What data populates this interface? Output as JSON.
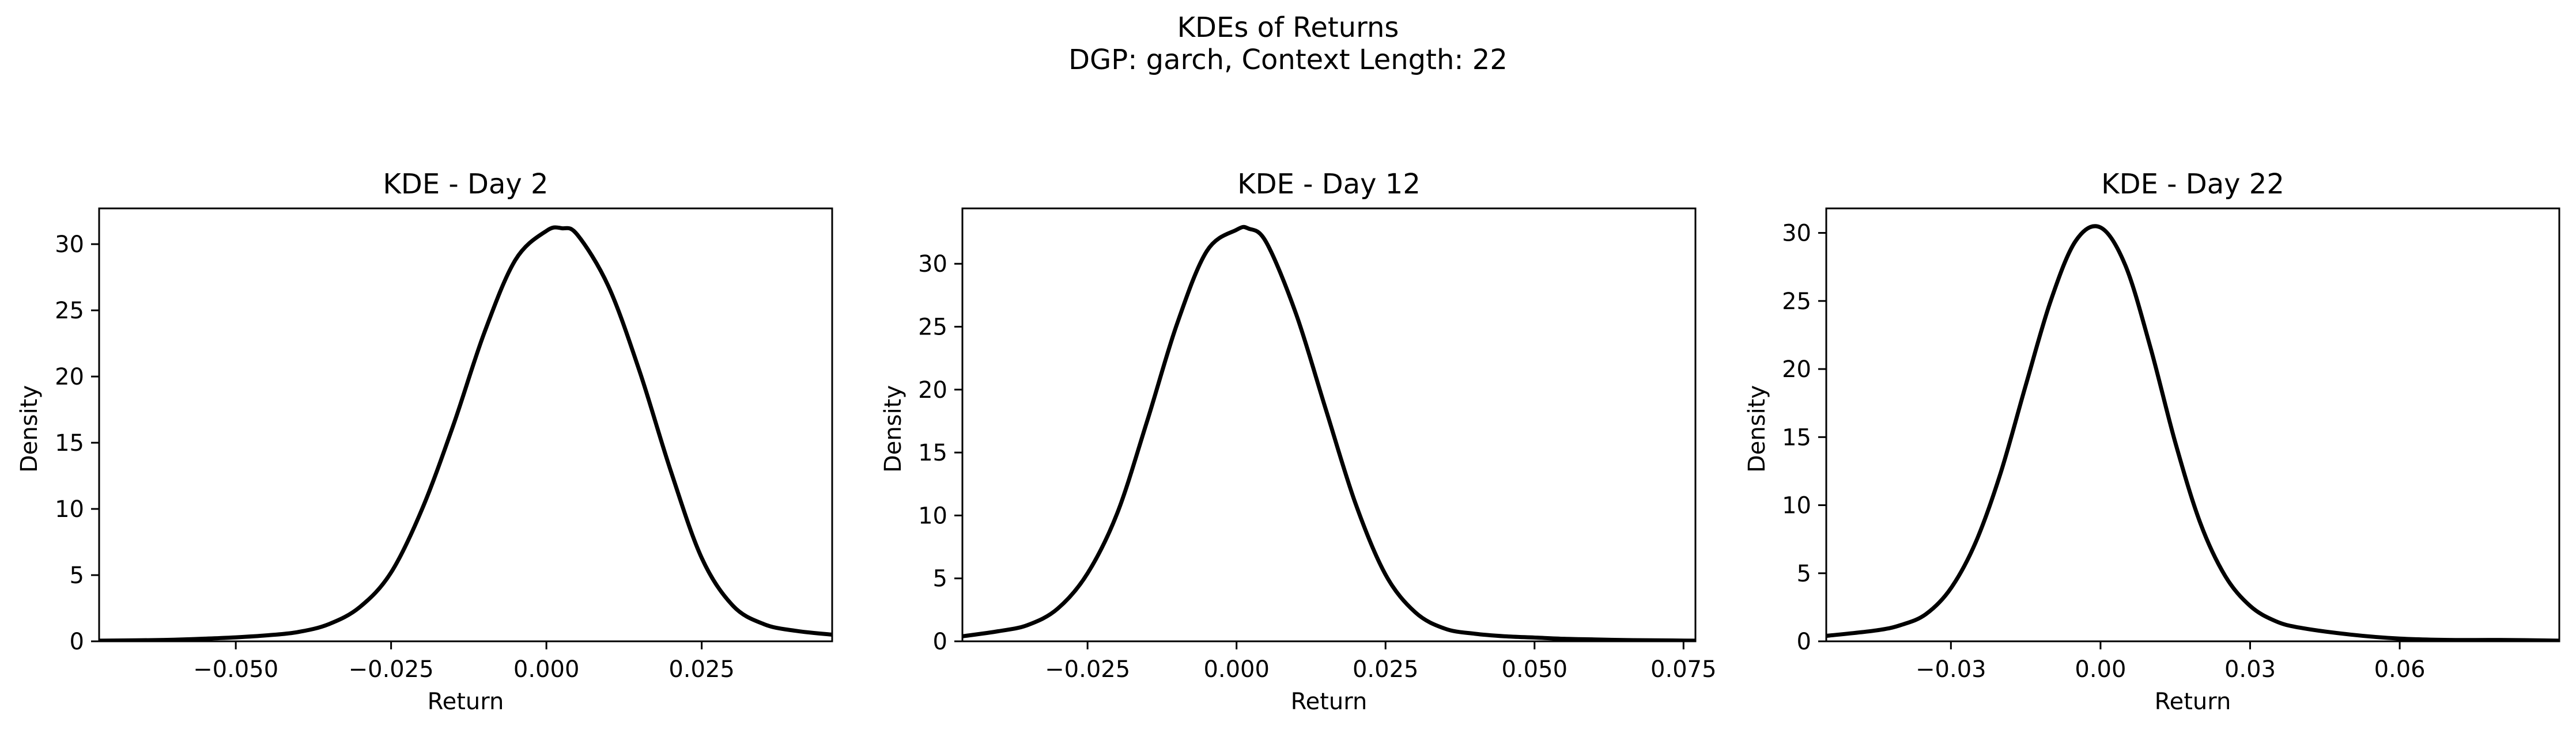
{
  "figure": {
    "title_line1": "KDEs of Returns",
    "title_line2": "DGP: garch, Context Length: 22"
  },
  "chart_data": [
    {
      "type": "line",
      "title": "KDE - Day 2",
      "xlabel": "Return",
      "ylabel": "Density",
      "xlim": [
        -0.072,
        0.046
      ],
      "ylim": [
        0,
        32.7
      ],
      "xticks": [
        -0.05,
        -0.025,
        0.0,
        0.025
      ],
      "xtick_labels": [
        "−0.050",
        "−0.025",
        "0.000",
        "0.025"
      ],
      "yticks": [
        0,
        5,
        10,
        15,
        20,
        25,
        30
      ],
      "ytick_labels": [
        "0",
        "5",
        "10",
        "15",
        "20",
        "25",
        "30"
      ],
      "line_color": "#000000",
      "series": [
        {
          "x": [
            -0.072,
            -0.065,
            -0.06,
            -0.055,
            -0.05,
            -0.045,
            -0.04,
            -0.035,
            -0.03,
            -0.025,
            -0.02,
            -0.015,
            -0.01,
            -0.005,
            0.0,
            0.0025,
            0.005,
            0.01,
            0.015,
            0.02,
            0.025,
            0.03,
            0.035,
            0.04,
            0.046
          ],
          "y": [
            0.05,
            0.08,
            0.12,
            0.2,
            0.3,
            0.45,
            0.7,
            1.3,
            2.6,
            5.2,
            10.0,
            16.3,
            23.3,
            28.8,
            31.0,
            31.2,
            30.7,
            26.8,
            20.4,
            12.9,
            6.3,
            2.7,
            1.3,
            0.8,
            0.5
          ]
        }
      ]
    },
    {
      "type": "line",
      "title": "KDE - Day 12",
      "xlabel": "Return",
      "ylabel": "Density",
      "xlim": [
        -0.046,
        0.077
      ],
      "ylim": [
        0,
        34.4
      ],
      "xticks": [
        -0.025,
        0.0,
        0.025,
        0.05,
        0.075
      ],
      "xtick_labels": [
        "−0.025",
        "0.000",
        "0.025",
        "0.050",
        "0.075"
      ],
      "yticks": [
        0,
        5,
        10,
        15,
        20,
        25,
        30
      ],
      "ytick_labels": [
        "0",
        "5",
        "10",
        "15",
        "20",
        "25",
        "30"
      ],
      "line_color": "#000000",
      "series": [
        {
          "x": [
            -0.046,
            -0.04,
            -0.035,
            -0.03,
            -0.025,
            -0.02,
            -0.015,
            -0.01,
            -0.005,
            0.0,
            0.002,
            0.005,
            0.01,
            0.015,
            0.02,
            0.025,
            0.03,
            0.035,
            0.04,
            0.045,
            0.05,
            0.055,
            0.06,
            0.065,
            0.07,
            0.077
          ],
          "y": [
            0.4,
            0.8,
            1.3,
            2.6,
            5.4,
            10.2,
            17.5,
            25.2,
            31.0,
            32.7,
            32.8,
            31.7,
            26.0,
            18.4,
            10.9,
            5.3,
            2.3,
            1.0,
            0.6,
            0.4,
            0.3,
            0.2,
            0.15,
            0.1,
            0.08,
            0.05
          ]
        }
      ]
    },
    {
      "type": "line",
      "title": "KDE - Day 22",
      "xlabel": "Return",
      "ylabel": "Density",
      "xlim": [
        -0.055,
        0.092
      ],
      "ylim": [
        0,
        31.8
      ],
      "xticks": [
        -0.03,
        0.0,
        0.03,
        0.06
      ],
      "xtick_labels": [
        "−0.03",
        "0.00",
        "0.03",
        "0.06"
      ],
      "yticks": [
        0,
        5,
        10,
        15,
        20,
        25,
        30
      ],
      "ytick_labels": [
        "0",
        "5",
        "10",
        "15",
        "20",
        "25",
        "30"
      ],
      "line_color": "#000000",
      "series": [
        {
          "x": [
            -0.055,
            -0.045,
            -0.04,
            -0.035,
            -0.03,
            -0.025,
            -0.02,
            -0.015,
            -0.01,
            -0.005,
            0.0,
            0.005,
            0.01,
            0.015,
            0.02,
            0.025,
            0.03,
            0.035,
            0.04,
            0.05,
            0.06,
            0.07,
            0.08,
            0.092
          ],
          "y": [
            0.4,
            0.8,
            1.2,
            2.0,
            3.9,
            7.3,
            12.4,
            18.8,
            25.0,
            29.4,
            30.4,
            27.6,
            21.6,
            14.6,
            8.7,
            4.8,
            2.6,
            1.5,
            1.0,
            0.5,
            0.2,
            0.1,
            0.1,
            0.05
          ]
        }
      ]
    }
  ]
}
